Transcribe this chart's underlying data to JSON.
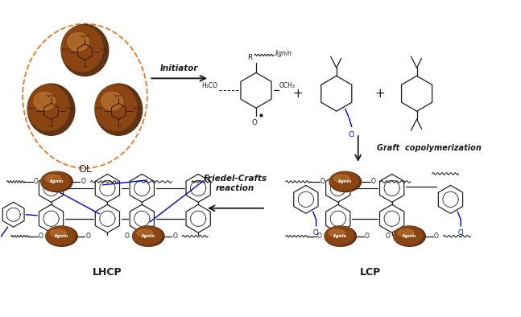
{
  "background_color": "#ffffff",
  "figsize": [
    6.47,
    3.94
  ],
  "dpi": 100,
  "ol_label": "OL",
  "lcp_label": "LCP",
  "lhcp_label": "LHCP",
  "initiator_label": "Initiator",
  "graft_label": "Graft  copolymerization",
  "friedel_label": "Friedel-Crafts\nreaction",
  "lignin_label": "lignin",
  "brown_dark": "#5C3317",
  "brown_mid": "#8B4513",
  "brown_light": "#CD853F",
  "brown_highlight": "#DEB887",
  "orange_dashed": "#E87722",
  "blue_color": "#0000CD",
  "black": "#1a1a1a",
  "arrow_color": "#2F2F2F"
}
